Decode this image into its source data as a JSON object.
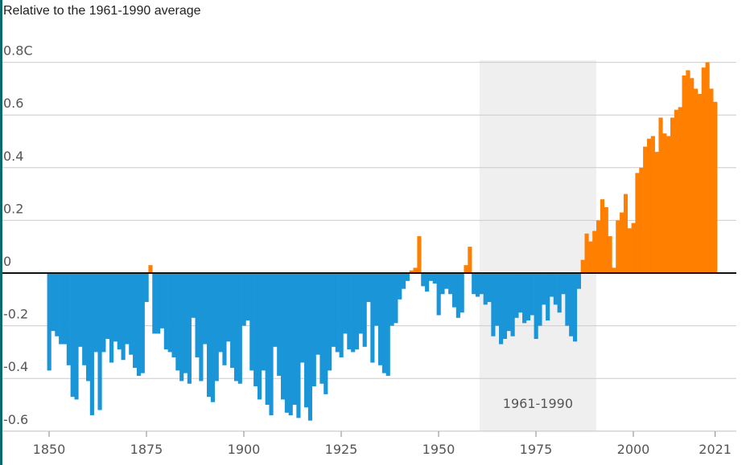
{
  "chart_data": {
    "type": "bar",
    "subtitle": "Relative to the 1961-1990 average",
    "y_top_label": "0.8C",
    "ylim": [
      -0.6,
      0.8
    ],
    "y_ticks": [
      {
        "value": 0.8,
        "label": "0.8C"
      },
      {
        "value": 0.6,
        "label": "0.6"
      },
      {
        "value": 0.4,
        "label": "0.4"
      },
      {
        "value": 0.2,
        "label": "0.2"
      },
      {
        "value": 0.0,
        "label": "0"
      },
      {
        "value": -0.2,
        "label": "-0.2"
      },
      {
        "value": -0.4,
        "label": "-0.4"
      },
      {
        "value": -0.6,
        "label": "-0.6"
      }
    ],
    "x_ticks": [
      {
        "value": 1850,
        "label": "1850"
      },
      {
        "value": 1875,
        "label": "1875"
      },
      {
        "value": 1900,
        "label": "1900"
      },
      {
        "value": 1925,
        "label": "1925"
      },
      {
        "value": 1950,
        "label": "1950"
      },
      {
        "value": 1975,
        "label": "1975"
      },
      {
        "value": 2000,
        "label": "2000"
      },
      {
        "value": 2021,
        "label": "2021"
      }
    ],
    "reference_period": {
      "start": 1961,
      "end": 1990,
      "label": "1961-1990"
    },
    "grid": true,
    "colors": {
      "positive": "#ff7f00",
      "negative": "#1a95d8",
      "band": "#efefef",
      "grid": "#cccccc",
      "zero_line": "#111111"
    },
    "years": [
      1850,
      1851,
      1852,
      1853,
      1854,
      1855,
      1856,
      1857,
      1858,
      1859,
      1860,
      1861,
      1862,
      1863,
      1864,
      1865,
      1866,
      1867,
      1868,
      1869,
      1870,
      1871,
      1872,
      1873,
      1874,
      1875,
      1876,
      1877,
      1878,
      1879,
      1880,
      1881,
      1882,
      1883,
      1884,
      1885,
      1886,
      1887,
      1888,
      1889,
      1890,
      1891,
      1892,
      1893,
      1894,
      1895,
      1896,
      1897,
      1898,
      1899,
      1900,
      1901,
      1902,
      1903,
      1904,
      1905,
      1906,
      1907,
      1908,
      1909,
      1910,
      1911,
      1912,
      1913,
      1914,
      1915,
      1916,
      1917,
      1918,
      1919,
      1920,
      1921,
      1922,
      1923,
      1924,
      1925,
      1926,
      1927,
      1928,
      1929,
      1930,
      1931,
      1932,
      1933,
      1934,
      1935,
      1936,
      1937,
      1938,
      1939,
      1940,
      1941,
      1942,
      1943,
      1944,
      1945,
      1946,
      1947,
      1948,
      1949,
      1950,
      1951,
      1952,
      1953,
      1954,
      1955,
      1956,
      1957,
      1958,
      1959,
      1960,
      1961,
      1962,
      1963,
      1964,
      1965,
      1966,
      1967,
      1968,
      1969,
      1970,
      1971,
      1972,
      1973,
      1974,
      1975,
      1976,
      1977,
      1978,
      1979,
      1980,
      1981,
      1982,
      1983,
      1984,
      1985,
      1986,
      1987,
      1988,
      1989,
      1990,
      1991,
      1992,
      1993,
      1994,
      1995,
      1996,
      1997,
      1998,
      1999,
      2000,
      2001,
      2002,
      2003,
      2004,
      2005,
      2006,
      2007,
      2008,
      2009,
      2010,
      2011,
      2012,
      2013,
      2014,
      2015,
      2016,
      2017,
      2018,
      2019,
      2020,
      2021
    ],
    "values": [
      -0.37,
      -0.22,
      -0.24,
      -0.27,
      -0.27,
      -0.35,
      -0.47,
      -0.48,
      -0.28,
      -0.35,
      -0.41,
      -0.54,
      -0.3,
      -0.52,
      -0.3,
      -0.25,
      -0.34,
      -0.26,
      -0.29,
      -0.33,
      -0.27,
      -0.31,
      -0.36,
      -0.39,
      -0.38,
      -0.11,
      0.03,
      -0.23,
      -0.23,
      -0.21,
      -0.29,
      -0.3,
      -0.32,
      -0.37,
      -0.41,
      -0.38,
      -0.42,
      -0.17,
      -0.32,
      -0.41,
      -0.27,
      -0.47,
      -0.49,
      -0.41,
      -0.3,
      -0.35,
      -0.26,
      -0.36,
      -0.41,
      -0.42,
      -0.2,
      -0.18,
      -0.37,
      -0.43,
      -0.48,
      -0.37,
      -0.5,
      -0.54,
      -0.28,
      -0.39,
      -0.48,
      -0.53,
      -0.54,
      -0.5,
      -0.55,
      -0.34,
      -0.51,
      -0.56,
      -0.43,
      -0.31,
      -0.42,
      -0.46,
      -0.37,
      -0.28,
      -0.3,
      -0.32,
      -0.23,
      -0.29,
      -0.3,
      -0.29,
      -0.23,
      -0.28,
      -0.11,
      -0.34,
      -0.2,
      -0.35,
      -0.38,
      -0.39,
      -0.2,
      -0.19,
      -0.1,
      -0.06,
      -0.03,
      0.01,
      0.02,
      0.14,
      -0.05,
      -0.07,
      -0.03,
      -0.04,
      -0.16,
      -0.08,
      -0.06,
      -0.08,
      -0.13,
      -0.17,
      -0.15,
      0.03,
      0.1,
      -0.08,
      -0.09,
      -0.08,
      -0.12,
      -0.11,
      -0.24,
      -0.2,
      -0.27,
      -0.25,
      -0.22,
      -0.24,
      -0.17,
      -0.15,
      -0.19,
      -0.18,
      -0.16,
      -0.25,
      -0.2,
      -0.12,
      -0.18,
      -0.09,
      -0.12,
      -0.15,
      -0.08,
      -0.2,
      -0.24,
      -0.26,
      -0.06,
      0.05,
      0.15,
      0.12,
      0.16,
      0.2,
      0.28,
      0.25,
      0.14,
      0.02,
      0.2,
      0.23,
      0.3,
      0.17,
      0.19,
      0.38,
      0.4,
      0.48,
      0.51,
      0.52,
      0.46,
      0.59,
      0.53,
      0.52,
      0.59,
      0.62,
      0.63,
      0.75,
      0.77,
      0.74,
      0.7,
      0.68,
      0.78,
      0.8,
      0.7,
      0.65
    ]
  }
}
